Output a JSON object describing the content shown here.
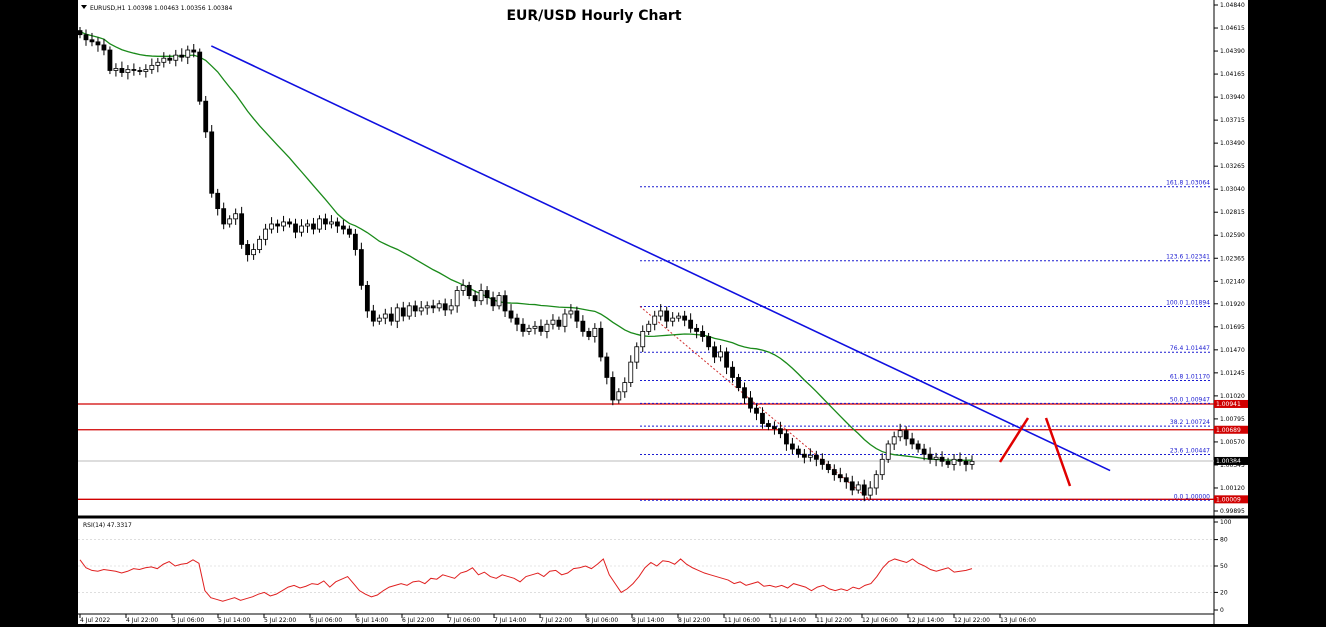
{
  "chart_data": {
    "type": "candlestick",
    "title": "EUR/USD Hourly Chart",
    "symbol_info": "EURUSD,H1 1.00398 1.00463 1.00356 1.00384",
    "price_axis": {
      "range": [
        0.99895,
        1.0484
      ],
      "ticks": [
        "1.04840",
        "1.04615",
        "1.04390",
        "1.04165",
        "1.03940",
        "1.03715",
        "1.03490",
        "1.03265",
        "1.03040",
        "1.02815",
        "1.02590",
        "1.02365",
        "1.02140",
        "1.01920",
        "1.01695",
        "1.01470",
        "1.01245",
        "1.01020",
        "1.00795",
        "1.00570",
        "1.00345",
        "1.00120",
        "0.99895"
      ]
    },
    "time_axis": {
      "labels": [
        "4 Jul 2022",
        "4 Jul 22:00",
        "5 Jul 06:00",
        "5 Jul 14:00",
        "5 Jul 22:00",
        "6 Jul 06:00",
        "6 Jul 14:00",
        "6 Jul 22:00",
        "7 Jul 06:00",
        "7 Jul 14:00",
        "7 Jul 22:00",
        "8 Jul 06:00",
        "8 Jul 14:00",
        "8 Jul 22:00",
        "11 Jul 06:00",
        "11 Jul 14:00",
        "11 Jul 22:00",
        "12 Jul 06:00",
        "12 Jul 14:00",
        "12 Jul 22:00",
        "13 Jul 06:00"
      ]
    },
    "close_series": [
      1.0455,
      1.045,
      1.0448,
      1.0445,
      1.044,
      1.042,
      1.0422,
      1.0418,
      1.0421,
      1.042,
      1.0419,
      1.0421,
      1.0425,
      1.0428,
      1.0432,
      1.043,
      1.0435,
      1.0433,
      1.044,
      1.0438,
      1.039,
      1.036,
      1.03,
      1.0285,
      1.027,
      1.0275,
      1.028,
      1.025,
      1.024,
      1.0245,
      1.0255,
      1.0265,
      1.027,
      1.0268,
      1.0272,
      1.027,
      1.0262,
      1.0268,
      1.027,
      1.0265,
      1.0275,
      1.027,
      1.0272,
      1.0268,
      1.0265,
      1.026,
      1.0245,
      1.021,
      1.0185,
      1.0175,
      1.0178,
      1.0182,
      1.0175,
      1.0188,
      1.018,
      1.019,
      1.0185,
      1.0188,
      1.019,
      1.0188,
      1.0192,
      1.0186,
      1.019,
      1.0205,
      1.021,
      1.02,
      1.0195,
      1.0205,
      1.0198,
      1.019,
      1.02,
      1.0185,
      1.0178,
      1.0172,
      1.0165,
      1.0168,
      1.017,
      1.0165,
      1.0172,
      1.0176,
      1.017,
      1.0182,
      1.0185,
      1.0175,
      1.0165,
      1.016,
      1.0168,
      1.014,
      1.012,
      1.0098,
      1.0106,
      1.0115,
      1.0135,
      1.015,
      1.0165,
      1.0172,
      1.018,
      1.0185,
      1.0175,
      1.0178,
      1.018,
      1.0176,
      1.0168,
      1.0165,
      1.016,
      1.015,
      1.014,
      1.0145,
      1.013,
      1.012,
      1.011,
      1.01,
      1.009,
      1.0085,
      1.0075,
      1.0072,
      1.007,
      1.0065,
      1.0055,
      1.005,
      1.0045,
      1.0042,
      1.0044,
      1.004,
      1.0035,
      1.003,
      1.0025,
      1.0022,
      1.0018,
      1.001,
      1.0015,
      1.0005,
      1.0012,
      1.0025,
      1.004,
      1.0055,
      1.0062,
      1.0068,
      1.006,
      1.0055,
      1.005,
      1.0045,
      1.004,
      1.0042,
      1.0038,
      1.0035,
      1.004,
      1.0038,
      1.0035,
      1.0038
    ],
    "series": [
      {
        "name": "MA",
        "type": "line",
        "color": "#1a8a1a"
      },
      {
        "name": "Trend line",
        "type": "line",
        "color": "#1010e0",
        "from": [
          0.116,
          1.0444
        ],
        "to": [
          0.91,
          1.0029
        ]
      }
    ],
    "horizontal_levels": [
      {
        "value": 1.00941,
        "label": "1.00941",
        "color": "#d00000"
      },
      {
        "value": 1.00689,
        "label": "1.00689",
        "color": "#d00000"
      },
      {
        "value": 1.00009,
        "label": "1.00009",
        "color": "#d00000"
      }
    ],
    "current_price": "1.00384",
    "fibonacci": {
      "levels": [
        {
          "ratio": "161.8",
          "value": 1.03064,
          "label": "161.8 1.03064"
        },
        {
          "ratio": "123.6",
          "value": 1.02341,
          "label": "123.6 1.02341"
        },
        {
          "ratio": "100.0",
          "value": 1.01894,
          "label": "100.0 1.01894"
        },
        {
          "ratio": "76.4",
          "value": 1.01447,
          "label": "76.4 1.01447"
        },
        {
          "ratio": "61.8",
          "value": 1.0117,
          "label": "61.8 1.01170"
        },
        {
          "ratio": "50.0",
          "value": 1.00947,
          "label": "50.0 1.00947"
        },
        {
          "ratio": "38.2",
          "value": 1.00724,
          "label": "38.2 1.00724"
        },
        {
          "ratio": "23.6",
          "value": 1.00447,
          "label": "23.6 1.00447"
        },
        {
          "ratio": "0.0",
          "value": 1.0,
          "label": "0.0 1.00000"
        }
      ]
    },
    "rsi": {
      "label": "RSI(14) 47.3317",
      "range": [
        0,
        100
      ],
      "ticks": [
        "100",
        "80",
        "50",
        "20",
        "0"
      ],
      "color": "#e02020",
      "values": [
        57,
        48,
        45,
        44,
        46,
        45,
        44,
        42,
        44,
        47,
        46,
        48,
        49,
        47,
        52,
        55,
        50,
        52,
        53,
        57,
        53,
        22,
        14,
        12,
        10,
        12,
        14,
        11,
        13,
        15,
        18,
        20,
        16,
        18,
        22,
        26,
        28,
        25,
        27,
        30,
        29,
        33,
        26,
        32,
        35,
        38,
        30,
        22,
        18,
        15,
        17,
        22,
        26,
        28,
        30,
        28,
        32,
        33,
        30,
        36,
        35,
        40,
        38,
        36,
        42,
        44,
        48,
        40,
        43,
        38,
        36,
        40,
        38,
        36,
        32,
        38,
        40,
        42,
        38,
        44,
        45,
        40,
        42,
        47,
        48,
        50,
        47,
        52,
        58,
        40,
        30,
        20,
        24,
        30,
        38,
        48,
        54,
        50,
        56,
        55,
        52,
        58,
        52,
        48,
        45,
        42,
        40,
        38,
        36,
        34,
        30,
        32,
        28,
        30,
        32,
        27,
        28,
        26,
        28,
        25,
        30,
        28,
        26,
        22,
        26,
        28,
        24,
        22,
        24,
        22,
        26,
        24,
        28,
        30,
        38,
        48,
        55,
        58,
        56,
        54,
        58,
        53,
        50,
        46,
        44,
        46,
        48,
        43,
        44,
        45,
        47
      ]
    }
  }
}
